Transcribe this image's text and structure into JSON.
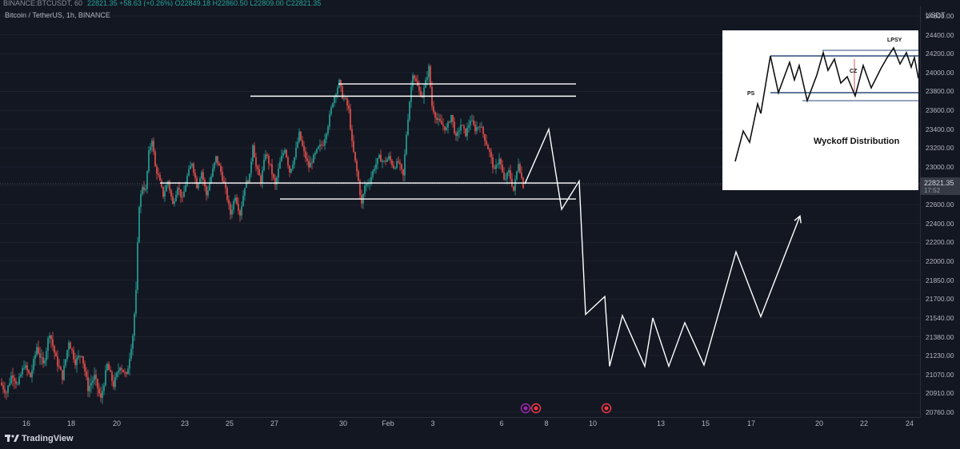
{
  "header": {
    "symbol": "BINANCE:BTCUSDT, 60",
    "ohlc": "22821.35 +58.63 (+0.26%) O22849.18 H22860.50 L22809.00 C22821.35"
  },
  "chart_data": {
    "type": "line",
    "title": "Bitcoin / TetherUS, 1h, BINANCE",
    "ylabel": "USDT",
    "ylim": [
      20760,
      24600
    ],
    "y_ticks": [
      "24600.00",
      "24400.00",
      "24200.00",
      "24000.00",
      "23800.00",
      "23600.00",
      "23400.00",
      "23200.00",
      "23000.00",
      "22800.00",
      "22600.00",
      "22400.00",
      "22200.00",
      "22000.00",
      "21850.00",
      "21700.00",
      "21540.00",
      "21380.00",
      "21230.00",
      "21070.00",
      "20910.00",
      "20760.00"
    ],
    "x_ticks": [
      "16",
      "18",
      "20",
      "23",
      "25",
      "27",
      "30",
      "Feb",
      "3",
      "6",
      "8",
      "10",
      "13",
      "15",
      "17",
      "20",
      "22",
      "24"
    ],
    "last_price": "22821.35",
    "countdown": "17:52",
    "price_path": [
      [
        0,
        21000
      ],
      [
        8,
        20920
      ],
      [
        15,
        21080
      ],
      [
        22,
        20980
      ],
      [
        30,
        21150
      ],
      [
        38,
        21050
      ],
      [
        46,
        21300
      ],
      [
        54,
        21150
      ],
      [
        62,
        21420
      ],
      [
        70,
        21200
      ],
      [
        78,
        21050
      ],
      [
        86,
        21350
      ],
      [
        94,
        21180
      ],
      [
        102,
        21250
      ],
      [
        110,
        20950
      ],
      [
        118,
        21050
      ],
      [
        126,
        20860
      ],
      [
        134,
        21150
      ],
      [
        142,
        20980
      ],
      [
        150,
        21150
      ],
      [
        158,
        21050
      ],
      [
        166,
        21400
      ],
      [
        170,
        21750
      ],
      [
        174,
        22600
      ],
      [
        178,
        22800
      ],
      [
        182,
        22750
      ],
      [
        186,
        23150
      ],
      [
        190,
        23300
      ],
      [
        194,
        23000
      ],
      [
        198,
        22900
      ],
      [
        204,
        22700
      ],
      [
        210,
        22850
      ],
      [
        216,
        22600
      ],
      [
        222,
        22800
      ],
      [
        228,
        22650
      ],
      [
        234,
        22900
      ],
      [
        240,
        23050
      ],
      [
        246,
        22800
      ],
      [
        252,
        22950
      ],
      [
        258,
        22700
      ],
      [
        264,
        22900
      ],
      [
        270,
        23100
      ],
      [
        276,
        22950
      ],
      [
        282,
        22750
      ],
      [
        288,
        22500
      ],
      [
        294,
        22700
      ],
      [
        300,
        22500
      ],
      [
        306,
        22800
      ],
      [
        312,
        22900
      ],
      [
        316,
        23250
      ],
      [
        320,
        23000
      ],
      [
        326,
        22850
      ],
      [
        332,
        23150
      ],
      [
        338,
        23000
      ],
      [
        344,
        22800
      ],
      [
        350,
        23050
      ],
      [
        356,
        23200
      ],
      [
        362,
        22950
      ],
      [
        368,
        23100
      ],
      [
        374,
        23350
      ],
      [
        380,
        23150
      ],
      [
        386,
        23000
      ],
      [
        392,
        23100
      ],
      [
        398,
        23200
      ],
      [
        404,
        23250
      ],
      [
        410,
        23450
      ],
      [
        416,
        23700
      ],
      [
        420,
        23800
      ],
      [
        424,
        23900
      ],
      [
        428,
        23750
      ],
      [
        432,
        23700
      ],
      [
        436,
        23600
      ],
      [
        440,
        23250
      ],
      [
        444,
        23050
      ],
      [
        448,
        22850
      ],
      [
        452,
        22600
      ],
      [
        456,
        22800
      ],
      [
        462,
        22850
      ],
      [
        468,
        23000
      ],
      [
        474,
        23100
      ],
      [
        480,
        23050
      ],
      [
        486,
        23100
      ],
      [
        492,
        23000
      ],
      [
        498,
        23050
      ],
      [
        504,
        22900
      ],
      [
        508,
        23350
      ],
      [
        512,
        23700
      ],
      [
        516,
        24000
      ],
      [
        520,
        23900
      ],
      [
        524,
        23800
      ],
      [
        528,
        23750
      ],
      [
        532,
        23900
      ],
      [
        536,
        24050
      ],
      [
        540,
        23650
      ],
      [
        546,
        23500
      ],
      [
        552,
        23450
      ],
      [
        558,
        23400
      ],
      [
        564,
        23550
      ],
      [
        570,
        23300
      ],
      [
        576,
        23450
      ],
      [
        582,
        23350
      ],
      [
        588,
        23500
      ],
      [
        594,
        23400
      ],
      [
        600,
        23450
      ],
      [
        606,
        23300
      ],
      [
        612,
        23150
      ],
      [
        618,
        22950
      ],
      [
        624,
        23100
      ],
      [
        630,
        22850
      ],
      [
        636,
        22950
      ],
      [
        642,
        22750
      ],
      [
        648,
        23050
      ],
      [
        654,
        22800
      ],
      [
        656,
        22821.35
      ]
    ],
    "levels": [
      {
        "x0": 423,
        "x1": 720,
        "y": 23880
      },
      {
        "x0": 313,
        "x1": 720,
        "y": 23750
      },
      {
        "x0": 200,
        "x1": 720,
        "y": 22830
      },
      {
        "x0": 350,
        "x1": 720,
        "y": 22660
      }
    ],
    "projection": [
      [
        656,
        22821.35
      ],
      [
        686,
        23400
      ],
      [
        702,
        22550
      ],
      [
        724,
        22850
      ],
      [
        732,
        21570
      ],
      [
        756,
        21720
      ],
      [
        762,
        21140
      ],
      [
        778,
        21560
      ],
      [
        806,
        21140
      ],
      [
        816,
        21540
      ],
      [
        836,
        21140
      ],
      [
        856,
        21500
      ],
      [
        880,
        21150
      ],
      [
        920,
        22100
      ],
      [
        951,
        21550
      ],
      [
        1000,
        22480
      ]
    ],
    "events": [
      {
        "x": 657,
        "icon": "flash-event-icon",
        "color": "#9c27b0"
      },
      {
        "x": 670,
        "icon": "us-flag-event-icon",
        "color": "#f23645"
      },
      {
        "x": 758,
        "icon": "us-flag-event-icon",
        "color": "#f23645"
      }
    ]
  },
  "inset": {
    "title": "Wyckoff Distribution",
    "labels": {
      "ps": "PS",
      "cz": "CZ",
      "lpsy": "LPSY"
    }
  },
  "branding": {
    "name": "TradingView"
  },
  "colors": {
    "bull": "#26a69a",
    "bear": "#ef5350",
    "background": "#131722",
    "line": "#ffffff"
  }
}
